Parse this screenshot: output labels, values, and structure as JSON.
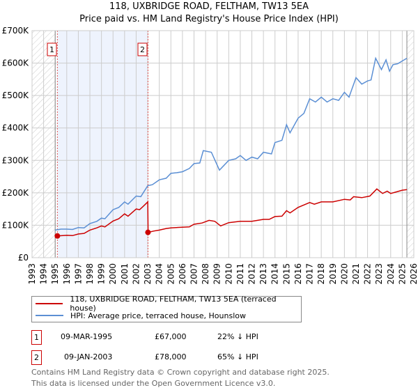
{
  "header": {
    "title": "118, UXBRIDGE ROAD, FELTHAM, TW13 5EA",
    "subtitle": "Price paid vs. HM Land Registry's House Price Index (HPI)"
  },
  "colors": {
    "property": "#cc0000",
    "hpi": "#5b8fd4",
    "shade": "#eef3fd",
    "grid": "#cccccc"
  },
  "chart_data": {
    "type": "line",
    "title": "118, UXBRIDGE ROAD, FELTHAM, TW13 5EA",
    "xlim": [
      1993,
      2026
    ],
    "ylim": [
      0,
      700000
    ],
    "x_ticks": [
      "1993",
      "1994",
      "1995",
      "1996",
      "1997",
      "1998",
      "1999",
      "2000",
      "2001",
      "2002",
      "2003",
      "2004",
      "2005",
      "2006",
      "2007",
      "2008",
      "2009",
      "2010",
      "2011",
      "2012",
      "2013",
      "2014",
      "2015",
      "2016",
      "2017",
      "2018",
      "2019",
      "2020",
      "2021",
      "2022",
      "2023",
      "2024",
      "2025",
      "2026"
    ],
    "y_ticks": [
      {
        "v": 0,
        "label": "£0"
      },
      {
        "v": 100000,
        "label": "£100K"
      },
      {
        "v": 200000,
        "label": "£200K"
      },
      {
        "v": 300000,
        "label": "£300K"
      },
      {
        "v": 400000,
        "label": "£400K"
      },
      {
        "v": 500000,
        "label": "£500K"
      },
      {
        "v": 600000,
        "label": "£600K"
      },
      {
        "v": 700000,
        "label": "£700K"
      }
    ],
    "grid": true,
    "data_range": [
      1995.0,
      2025.4
    ],
    "shaded_range": [
      1995.19,
      2003.02
    ],
    "series": [
      {
        "name": "118, UXBRIDGE ROAD, FELTHAM, TW13 5EA (terraced house)",
        "color": "#cc0000",
        "x": [
          1995.19,
          1996,
          1996.5,
          1997,
          1997.5,
          1998,
          1998.6,
          1999,
          1999.3,
          2000,
          2000.5,
          2001,
          2001.3,
          2002,
          2002.3,
          2002.6,
          2003.0,
          2003.03,
          2003.5,
          2004,
          2004.6,
          2005,
          2006,
          2006.6,
          2007,
          2007.7,
          2008.3,
          2008.8,
          2009.3,
          2010,
          2010.5,
          2011,
          2012,
          2013,
          2013.5,
          2014,
          2014.6,
          2015,
          2015.3,
          2016,
          2017,
          2017.4,
          2018,
          2019,
          2020,
          2020.5,
          2020.8,
          2021.5,
          2022.2,
          2022.8,
          2023.3,
          2023.7,
          2024,
          2024.5,
          2025,
          2025.4
        ],
        "y": [
          67000,
          69000,
          68000,
          73000,
          75000,
          85000,
          92000,
          98000,
          95000,
          113000,
          120000,
          135000,
          128000,
          150000,
          148000,
          158000,
          172000,
          78000,
          82000,
          85000,
          90000,
          92000,
          94000,
          95000,
          103000,
          107000,
          115000,
          112000,
          98000,
          108000,
          110000,
          112000,
          112000,
          118000,
          118000,
          127000,
          128000,
          145000,
          138000,
          155000,
          170000,
          165000,
          172000,
          172000,
          180000,
          178000,
          188000,
          185000,
          190000,
          212000,
          198000,
          205000,
          198000,
          203000,
          208000,
          210000
        ]
      },
      {
        "name": "HPI: Average price, terraced house, Hounslow",
        "color": "#5b8fd4",
        "x": [
          1995.0,
          1995.5,
          1996,
          1996.5,
          1997,
          1997.5,
          1998,
          1998.6,
          1999,
          1999.3,
          2000,
          2000.5,
          2001,
          2001.3,
          2002,
          2002.4,
          2003,
          2003.4,
          2004,
          2004.6,
          2005,
          2005.5,
          2006,
          2006.6,
          2007,
          2007.5,
          2007.8,
          2008.5,
          2009.2,
          2010,
          2010.6,
          2011,
          2011.5,
          2012,
          2012.5,
          2013,
          2013.7,
          2014,
          2014.6,
          2015,
          2015.3,
          2016,
          2016.5,
          2017,
          2017.5,
          2018,
          2018.5,
          2019,
          2019.5,
          2020,
          2020.4,
          2021,
          2021.5,
          2022,
          2022.3,
          2022.7,
          2023.2,
          2023.6,
          2023.9,
          2024.2,
          2024.6,
          2025.4
        ],
        "y": [
          85000,
          88000,
          88000,
          87000,
          93000,
          92000,
          105000,
          112000,
          122000,
          120000,
          148000,
          155000,
          172000,
          165000,
          190000,
          188000,
          222000,
          225000,
          240000,
          245000,
          260000,
          262000,
          265000,
          275000,
          290000,
          292000,
          330000,
          325000,
          270000,
          300000,
          305000,
          315000,
          300000,
          310000,
          305000,
          325000,
          320000,
          355000,
          362000,
          410000,
          385000,
          430000,
          445000,
          490000,
          480000,
          495000,
          480000,
          490000,
          485000,
          510000,
          495000,
          555000,
          535000,
          545000,
          548000,
          615000,
          580000,
          610000,
          575000,
          595000,
          598000,
          615000
        ]
      }
    ],
    "markers": [
      {
        "label": "1",
        "x": 1995.19,
        "y": 67000
      },
      {
        "label": "2",
        "x": 2003.02,
        "y": 78000
      }
    ]
  },
  "legend": {
    "property": "118, UXBRIDGE ROAD, FELTHAM, TW13 5EA (terraced house)",
    "hpi": "HPI: Average price, terraced house, Hounslow"
  },
  "transactions": [
    {
      "num": "1",
      "date": "09-MAR-1995",
      "price": "£67,000",
      "delta": "22% ↓ HPI"
    },
    {
      "num": "2",
      "date": "09-JAN-2003",
      "price": "£78,000",
      "delta": "65% ↓ HPI"
    }
  ],
  "footer": {
    "line1": "Contains HM Land Registry data © Crown copyright and database right 2025.",
    "line2": "This data is licensed under the Open Government Licence v3.0."
  }
}
